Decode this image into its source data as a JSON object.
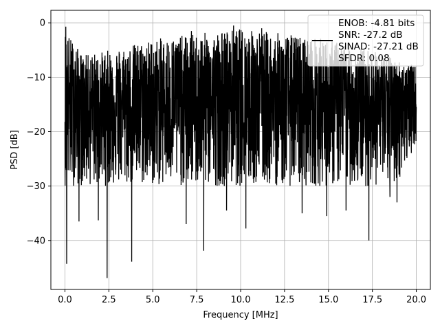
{
  "chart_data": {
    "type": "line",
    "title": "",
    "xlabel": "Frequency [MHz]",
    "ylabel": "PSD [dB]",
    "xlim": [
      -0.8,
      20.8
    ],
    "ylim": [
      -49,
      2.3
    ],
    "xticks": [
      0.0,
      2.5,
      5.0,
      7.5,
      10.0,
      12.5,
      15.0,
      17.5,
      20.0
    ],
    "xtick_labels": [
      "0.0",
      "2.5",
      "5.0",
      "7.5",
      "10.0",
      "12.5",
      "15.0",
      "17.5",
      "20.0"
    ],
    "yticks": [
      0,
      -10,
      -20,
      -30,
      -40
    ],
    "ytick_labels": [
      "0",
      "−10",
      "−20",
      "−30",
      "−40"
    ],
    "grid": true,
    "legend": {
      "placement": "top-right",
      "entries": [
        "ENOB: -4.81 bits",
        "SNR: -27.2 dB",
        "SINAD: -27.21 dB",
        "SFDR: 0.08"
      ]
    },
    "series": [
      {
        "color": "#000000",
        "x_range": [
          0.0,
          20.0
        ],
        "noise_floor_db": -15,
        "upper_envelope": [
          [
            0.0,
            -1
          ],
          [
            1,
            -6
          ],
          [
            2.5,
            -5
          ],
          [
            5,
            -3
          ],
          [
            7.5,
            -2
          ],
          [
            10,
            -1
          ],
          [
            12.5,
            -2
          ],
          [
            15,
            -3
          ],
          [
            17.5,
            -5
          ],
          [
            20,
            -8
          ]
        ],
        "lower_envelope": [
          [
            0.0,
            -44.5
          ],
          [
            2.4,
            -47
          ],
          [
            3.8,
            -44
          ],
          [
            7.9,
            -42
          ],
          [
            14.9,
            -35
          ],
          [
            17.4,
            -40
          ],
          [
            20,
            -22
          ]
        ],
        "peaks": [
          [
            0.05,
            -0.7
          ],
          [
            7.2,
            -1.5
          ],
          [
            9.6,
            -0.5
          ],
          [
            11.2,
            -1.0
          ]
        ],
        "dips": [
          [
            0.1,
            -44.3
          ],
          [
            0.8,
            -36.5
          ],
          [
            1.9,
            -36.3
          ],
          [
            2.4,
            -46.9
          ],
          [
            3.8,
            -43.9
          ],
          [
            6.9,
            -37.0
          ],
          [
            7.9,
            -41.9
          ],
          [
            9.2,
            -34.5
          ],
          [
            10.3,
            -37.8
          ],
          [
            13.5,
            -35.0
          ],
          [
            14.9,
            -35.5
          ],
          [
            16.0,
            -34.5
          ],
          [
            17.3,
            -40.0
          ],
          [
            18.5,
            -32.0
          ],
          [
            18.9,
            -33.0
          ]
        ]
      }
    ]
  }
}
